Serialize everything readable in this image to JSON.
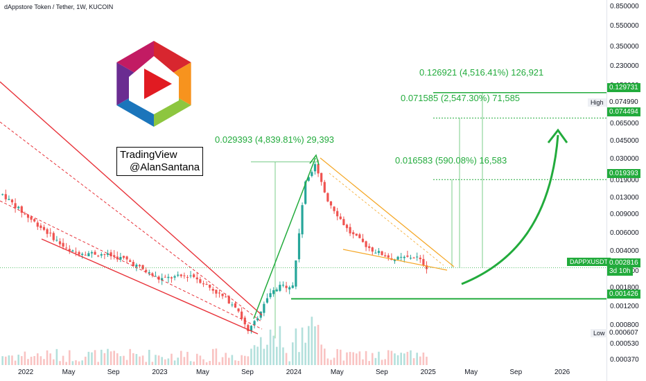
{
  "header": {
    "title": "dAppstore Token / Tether, 1W, KUCOIN"
  },
  "watermark": {
    "line1": "TradingView",
    "line2": "@AlanSantana"
  },
  "annotations": {
    "a1": "0.029393 (4,839.81%) 29,393",
    "a2": "0.126921 (4,516.41%) 126,921",
    "a3": "0.071585 (2,547.30%) 71,585",
    "a4": "0.016583 (590.08%) 16,583"
  },
  "price_axis": {
    "labels": [
      "0.850000",
      "0.550000",
      "0.350000",
      "0.230000",
      "0.150000",
      "0.100000",
      "0.065000",
      "0.045000",
      "0.030000",
      "0.019000",
      "0.013000",
      "0.009000",
      "0.006000",
      "0.004000",
      "0.002600",
      "0.001800",
      "0.001200",
      "0.000800",
      "0.000530",
      "0.000370"
    ],
    "badges": {
      "target1": "0.129731",
      "target2": "0.074494",
      "high": "0.074990",
      "target3": "0.019393",
      "last": "0.002816",
      "countdown": "3d 10h",
      "support": "0.001426",
      "low": "0.000607"
    },
    "tags": {
      "high": "High",
      "low": "Low",
      "symbol": "DAPPXUSDT"
    }
  },
  "time_axis": {
    "labels": [
      "2022",
      "May",
      "Sep",
      "2023",
      "May",
      "Sep",
      "2024",
      "May",
      "Sep",
      "2025",
      "May",
      "Sep",
      "2026"
    ]
  },
  "colors": {
    "up": "#26a69a",
    "down": "#ef5350",
    "bull": "#22ab3c",
    "bear": "#e8333a",
    "wedge": "#f5a623"
  },
  "chart_data": {
    "type": "candlestick",
    "symbol": "DAPPXUSDT",
    "interval": "1W",
    "exchange": "KUCOIN",
    "scale": "log",
    "ylim": [
      0.00033,
      0.9
    ],
    "x": [
      "2022-01",
      "2022-05",
      "2022-09",
      "2023-01",
      "2023-05",
      "2023-09",
      "2024-01",
      "2024-05",
      "2024-09",
      "2025-01",
      "2025-05",
      "2025-09",
      "2026-01"
    ],
    "close_path": [
      {
        "date": "2021-11",
        "close": 0.014
      },
      {
        "date": "2022-01",
        "close": 0.009
      },
      {
        "date": "2022-03",
        "close": 0.0062
      },
      {
        "date": "2022-05",
        "close": 0.004
      },
      {
        "date": "2022-08",
        "close": 0.0038
      },
      {
        "date": "2022-10",
        "close": 0.0034
      },
      {
        "date": "2023-01",
        "close": 0.0022
      },
      {
        "date": "2023-04",
        "close": 0.0024
      },
      {
        "date": "2023-06",
        "close": 0.0017
      },
      {
        "date": "2023-08",
        "close": 0.0012
      },
      {
        "date": "2023-09",
        "close": 0.00068
      },
      {
        "date": "2023-11",
        "close": 0.0016
      },
      {
        "date": "2023-12",
        "close": 0.0019
      },
      {
        "date": "2024-01",
        "close": 0.0019
      },
      {
        "date": "2024-02",
        "close": 0.017
      },
      {
        "date": "2024-03",
        "close": 0.028
      },
      {
        "date": "2024-04",
        "close": 0.013
      },
      {
        "date": "2024-06",
        "close": 0.0062
      },
      {
        "date": "2024-08",
        "close": 0.0042
      },
      {
        "date": "2024-10",
        "close": 0.0034
      },
      {
        "date": "2024-12",
        "close": 0.0036
      },
      {
        "date": "2025-01",
        "close": 0.0028
      }
    ],
    "levels": {
      "target1": 0.129731,
      "target2": 0.074494,
      "high": 0.07499,
      "target3": 0.019393,
      "last": 0.002816,
      "support": 0.001426,
      "low": 0.000607
    }
  }
}
